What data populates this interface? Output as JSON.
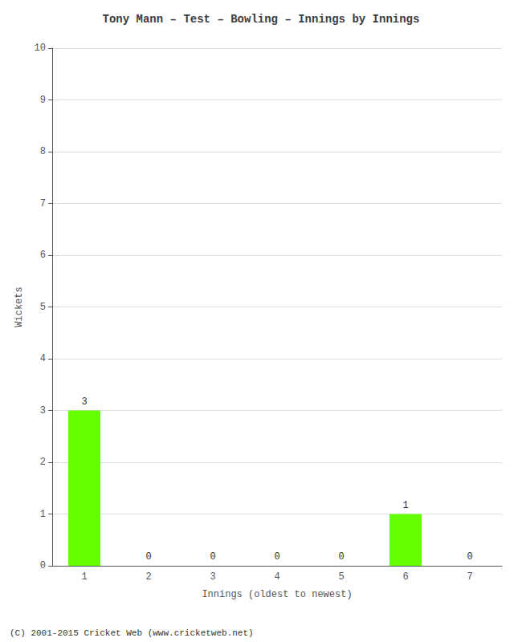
{
  "chart_data": {
    "type": "bar",
    "title": "Tony Mann – Test – Bowling – Innings by Innings",
    "x_label": "Innings (oldest to newest)",
    "y_label": "Wickets",
    "categories": [
      1,
      2,
      3,
      4,
      5,
      6,
      7
    ],
    "values": [
      3,
      0,
      0,
      0,
      0,
      1,
      0
    ],
    "color": "#66ff00",
    "ylim": [
      0,
      10
    ],
    "yticks": [
      0,
      1,
      2,
      3,
      4,
      5,
      6,
      7,
      8,
      9,
      10
    ],
    "grid": true,
    "data_labels": true,
    "annotations": [
      "(C) 2001-2015 Cricket Web (www.cricketweb.net)"
    ]
  }
}
